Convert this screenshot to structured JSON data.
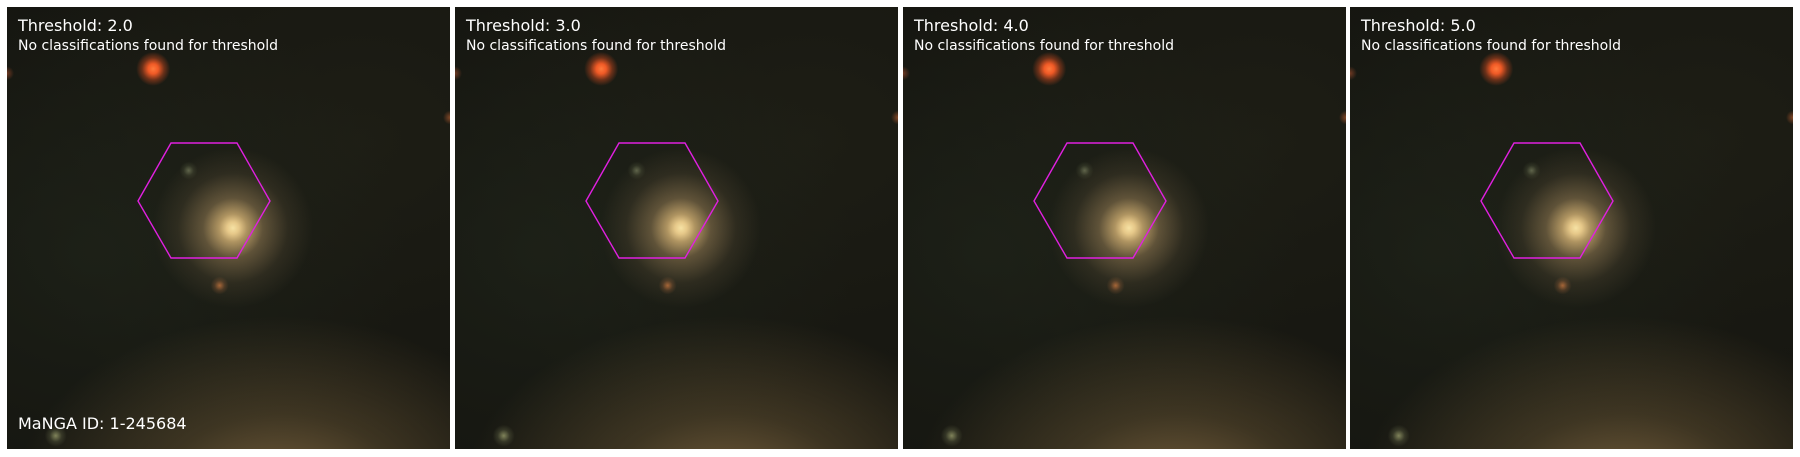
{
  "panels": [
    {
      "title": "Threshold: 2.0",
      "note": "No classifications found for threshold"
    },
    {
      "title": "Threshold: 3.0",
      "note": "No classifications found for threshold"
    },
    {
      "title": "Threshold: 4.0",
      "note": "No classifications found for threshold"
    },
    {
      "title": "Threshold: 5.0",
      "note": "No classifications found for threshold"
    }
  ],
  "manga_id_label": "MaNGA ID: 1-245684",
  "colors": {
    "hexagon": "#e020e0",
    "text": "#ffffff",
    "separator": "#ffffff"
  }
}
